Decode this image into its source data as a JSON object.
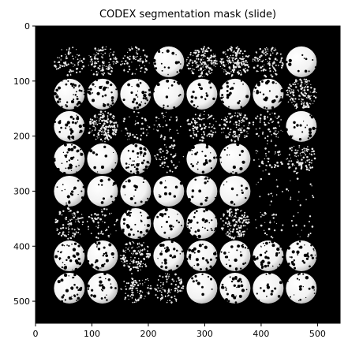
{
  "title": "CODEX segmentation mask (slide)",
  "image": {
    "description_free": true,
    "background_color": "#000000",
    "foreground_color": "#ffffff",
    "x_range": [
      0,
      540
    ],
    "y_range": [
      0,
      540
    ],
    "x_ticks": [
      "0",
      "100",
      "200",
      "300",
      "400",
      "500"
    ],
    "y_ticks": [
      "0",
      "100",
      "200",
      "300",
      "400",
      "500"
    ],
    "grid": {
      "rows": 8,
      "cols": 8
    },
    "cores": [
      {
        "r": 0,
        "c": 0,
        "v": 0.25
      },
      {
        "r": 0,
        "c": 1,
        "v": 0.35
      },
      {
        "r": 0,
        "c": 2,
        "v": 0.2
      },
      {
        "r": 0,
        "c": 3,
        "v": 0.85
      },
      {
        "r": 0,
        "c": 4,
        "v": 0.55
      },
      {
        "r": 0,
        "c": 5,
        "v": 0.55
      },
      {
        "r": 0,
        "c": 6,
        "v": 0.35
      },
      {
        "r": 0,
        "c": 7,
        "v": 0.95
      },
      {
        "r": 1,
        "c": 0,
        "v": 0.6
      },
      {
        "r": 1,
        "c": 1,
        "v": 0.7
      },
      {
        "r": 1,
        "c": 2,
        "v": 0.75
      },
      {
        "r": 1,
        "c": 3,
        "v": 0.9
      },
      {
        "r": 1,
        "c": 4,
        "v": 0.85
      },
      {
        "r": 1,
        "c": 5,
        "v": 0.8
      },
      {
        "r": 1,
        "c": 6,
        "v": 0.75
      },
      {
        "r": 1,
        "c": 7,
        "v": 0.5
      },
      {
        "r": 2,
        "c": 0,
        "v": 0.75
      },
      {
        "r": 2,
        "c": 1,
        "v": 0.55
      },
      {
        "r": 2,
        "c": 2,
        "v": 0.1
      },
      {
        "r": 2,
        "c": 3,
        "v": 0.1
      },
      {
        "r": 2,
        "c": 4,
        "v": 0.3
      },
      {
        "r": 2,
        "c": 5,
        "v": 0.35
      },
      {
        "r": 2,
        "c": 6,
        "v": 0.2
      },
      {
        "r": 2,
        "c": 7,
        "v": 0.85
      },
      {
        "r": 3,
        "c": 0,
        "v": 0.65
      },
      {
        "r": 3,
        "c": 1,
        "v": 0.95
      },
      {
        "r": 3,
        "c": 2,
        "v": 0.6
      },
      {
        "r": 3,
        "c": 3,
        "v": 0.15
      },
      {
        "r": 3,
        "c": 4,
        "v": 0.75
      },
      {
        "r": 3,
        "c": 5,
        "v": 0.9
      },
      {
        "r": 3,
        "c": 6,
        "v": 0.1
      },
      {
        "r": 3,
        "c": 7,
        "v": 0.3
      },
      {
        "r": 4,
        "c": 0,
        "v": 0.85
      },
      {
        "r": 4,
        "c": 1,
        "v": 0.95
      },
      {
        "r": 4,
        "c": 2,
        "v": 0.9
      },
      {
        "r": 4,
        "c": 3,
        "v": 0.95
      },
      {
        "r": 4,
        "c": 4,
        "v": 0.9
      },
      {
        "r": 4,
        "c": 5,
        "v": 0.95
      },
      {
        "r": 4,
        "c": 6,
        "v": 0.0
      },
      {
        "r": 4,
        "c": 7,
        "v": 0.0
      },
      {
        "r": 5,
        "c": 0,
        "v": 0.3
      },
      {
        "r": 5,
        "c": 1,
        "v": 0.15
      },
      {
        "r": 5,
        "c": 2,
        "v": 0.7
      },
      {
        "r": 5,
        "c": 3,
        "v": 0.85
      },
      {
        "r": 5,
        "c": 4,
        "v": 0.7
      },
      {
        "r": 5,
        "c": 5,
        "v": 0.5
      },
      {
        "r": 5,
        "c": 6,
        "v": 0.05
      },
      {
        "r": 5,
        "c": 7,
        "v": 0.0
      },
      {
        "r": 6,
        "c": 0,
        "v": 0.7
      },
      {
        "r": 6,
        "c": 1,
        "v": 0.8
      },
      {
        "r": 6,
        "c": 2,
        "v": 0.4
      },
      {
        "r": 6,
        "c": 3,
        "v": 0.75
      },
      {
        "r": 6,
        "c": 4,
        "v": 0.75
      },
      {
        "r": 6,
        "c": 5,
        "v": 0.8
      },
      {
        "r": 6,
        "c": 6,
        "v": 0.6
      },
      {
        "r": 6,
        "c": 7,
        "v": 0.7
      },
      {
        "r": 7,
        "c": 0,
        "v": 0.75
      },
      {
        "r": 7,
        "c": 1,
        "v": 0.8
      },
      {
        "r": 7,
        "c": 2,
        "v": 0.25
      },
      {
        "r": 7,
        "c": 3,
        "v": 0.3
      },
      {
        "r": 7,
        "c": 4,
        "v": 0.95
      },
      {
        "r": 7,
        "c": 5,
        "v": 0.75
      },
      {
        "r": 7,
        "c": 6,
        "v": 0.9
      },
      {
        "r": 7,
        "c": 7,
        "v": 0.85
      }
    ]
  }
}
